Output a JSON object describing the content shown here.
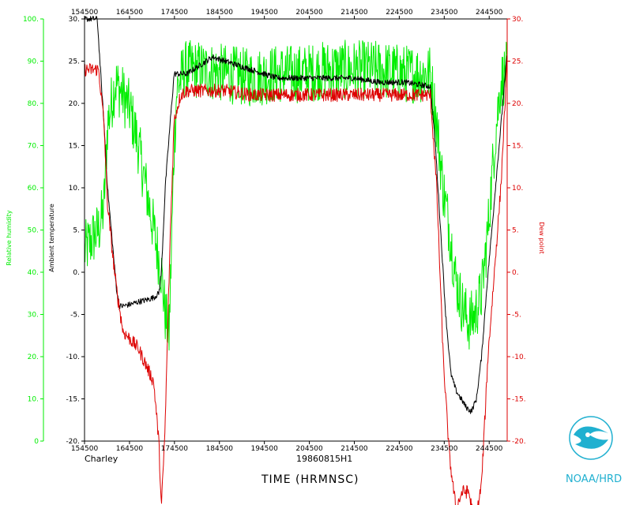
{
  "chart_data": {
    "type": "line",
    "storm_name": "Charley",
    "flight_id": "19860815H1",
    "x_title": "TIME (HRMNSC)",
    "x_ticks": [
      "154500",
      "164500",
      "174500",
      "184500",
      "194500",
      "204500",
      "214500",
      "224500",
      "234500",
      "244500"
    ],
    "x_seconds_range": [
      0,
      33000
    ],
    "y_left_rh": {
      "label": "Relative humidity",
      "color": "#00ee00",
      "range": [
        0,
        100
      ],
      "ticks": [
        "0",
        "10.",
        "20.",
        "30.",
        "40.",
        "50.",
        "60.",
        "70.",
        "80.",
        "90.",
        "100."
      ]
    },
    "y_left_temp": {
      "label": "Ambient temperature",
      "color": "#000000",
      "range": [
        -20,
        30
      ],
      "ticks": [
        "-20.",
        "-15.",
        "-10.",
        "-5.",
        "0.",
        "5.",
        "10.",
        "15.",
        "20.",
        "25.",
        "30."
      ]
    },
    "y_right_dew": {
      "label": "Dew point",
      "color": "#dd0000",
      "range": [
        -20,
        30
      ],
      "ticks": [
        "-20.",
        "-15.",
        "-10.",
        "-5.",
        "0.",
        "5.",
        "10.",
        "15.",
        "20.",
        "25.",
        "30."
      ]
    },
    "series": [
      {
        "name": "Relative humidity",
        "color": "#00ee00",
        "axis": "rh",
        "noise": 7,
        "x": [
          0,
          600,
          1100,
          1500,
          1800,
          2400,
          3000,
          3600,
          4200,
          4800,
          5400,
          6000,
          6300,
          6600,
          7000,
          7200,
          7400,
          7800,
          9000,
          11000,
          13000,
          15000,
          17000,
          19000,
          21000,
          23000,
          25000,
          27000,
          27500,
          28000,
          28500,
          29000,
          29500,
          30000,
          30500,
          31000,
          31500,
          32000,
          32500,
          33000
        ],
        "y": [
          45,
          48,
          50,
          55,
          75,
          85,
          82,
          78,
          70,
          60,
          50,
          40,
          30,
          25,
          70,
          83,
          85,
          88,
          88,
          87,
          86,
          87,
          87,
          88,
          88,
          88,
          87,
          87,
          75,
          60,
          50,
          38,
          32,
          28,
          30,
          35,
          50,
          70,
          85,
          88
        ]
      },
      {
        "name": "Ambient temperature",
        "color": "#000000",
        "axis": "temp",
        "noise": 0.35,
        "x": [
          0,
          300,
          500,
          800,
          1000,
          1200,
          1500,
          1800,
          2200,
          2500,
          2700,
          3000,
          3600,
          4200,
          4800,
          5400,
          5800,
          6000,
          6300,
          6700,
          7000,
          7200,
          8000,
          9000,
          10000,
          11000,
          13000,
          15000,
          17000,
          19000,
          21000,
          23000,
          25000,
          27000,
          27400,
          27800,
          28200,
          28600,
          29000,
          29400,
          29800,
          30200,
          30600,
          31000,
          31400,
          31800,
          32200,
          32600,
          33000
        ],
        "y": [
          30,
          30,
          30,
          30,
          30,
          25,
          18,
          10,
          3,
          -2,
          -4,
          -4,
          -3.8,
          -3.5,
          -3.3,
          -3,
          -2.5,
          0,
          10,
          18,
          23.5,
          23.5,
          23.5,
          24.5,
          25.5,
          25,
          24,
          23,
          23,
          23,
          23,
          22.5,
          22.5,
          22,
          15,
          5,
          -5,
          -12,
          -14,
          -15,
          -16,
          -16.5,
          -15,
          -10,
          -2,
          5,
          12,
          19,
          26
        ]
      },
      {
        "name": "Dew point",
        "color": "#dd0000",
        "axis": "temp",
        "noise": 0.8,
        "x": [
          0,
          500,
          1100,
          1500,
          1800,
          2200,
          2500,
          2800,
          3000,
          3600,
          4200,
          4800,
          5400,
          5800,
          6000,
          6300,
          6700,
          7000,
          7500,
          8000,
          9000,
          11000,
          13000,
          15000,
          17000,
          19000,
          21000,
          23000,
          25000,
          27000,
          27500,
          28000,
          28500,
          29000,
          29500,
          30000,
          30500,
          31000,
          31500,
          32000,
          32500,
          33000
        ],
        "y": [
          24,
          24,
          24,
          18,
          8,
          2,
          -2,
          -5,
          -7,
          -8,
          -9,
          -11,
          -13,
          -20,
          -28,
          -18,
          5,
          18,
          21,
          21.5,
          21.5,
          21.5,
          21,
          21,
          21,
          21,
          21,
          21,
          21,
          21,
          10,
          -10,
          -22,
          -28,
          -26,
          -26,
          -30,
          -25,
          -10,
          0,
          10,
          25
        ]
      }
    ]
  },
  "logo": {
    "text": "NOAA/HRD",
    "color": "#20b0d0"
  }
}
